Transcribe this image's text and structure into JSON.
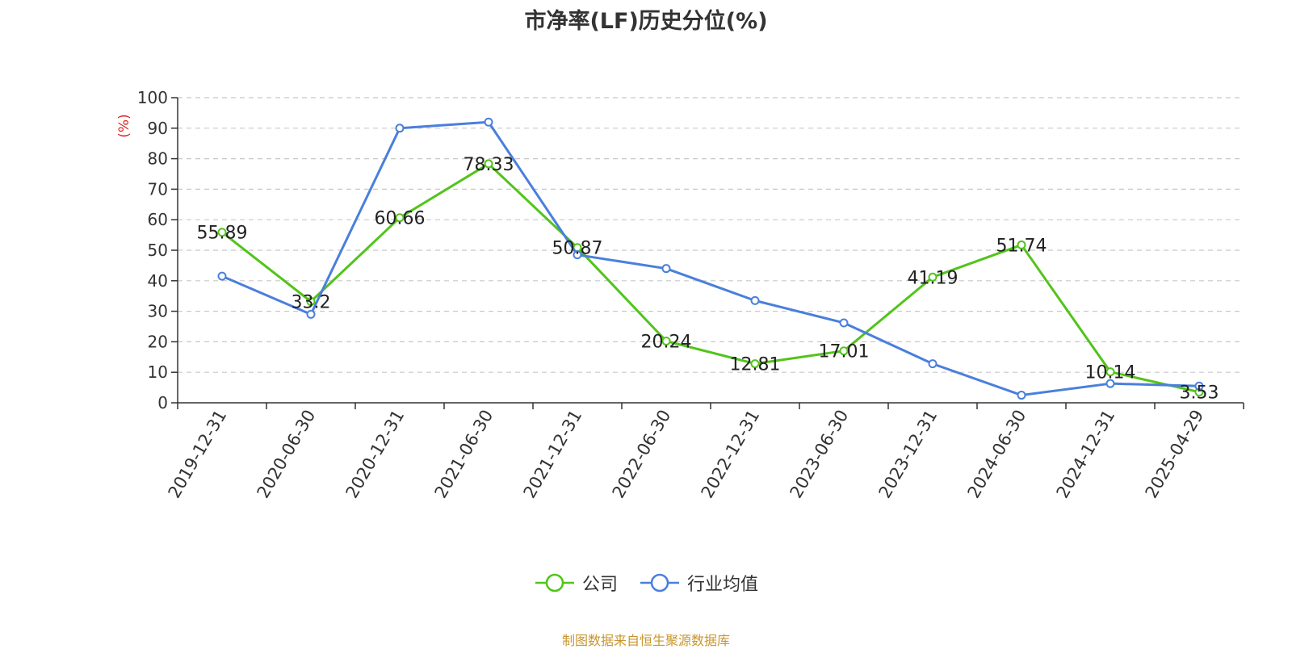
{
  "chart_data": {
    "type": "line",
    "title": "市净率(LF)历史分位(%)",
    "ylabel": "(%)",
    "xlabel": "",
    "ylim": [
      0,
      100
    ],
    "yticks": [
      "0",
      "10",
      "20",
      "30",
      "40",
      "50",
      "60",
      "70",
      "80",
      "90",
      "100"
    ],
    "categories": [
      "2019-12-31",
      "2020-06-30",
      "2020-12-31",
      "2021-06-30",
      "2021-12-31",
      "2022-06-30",
      "2022-12-31",
      "2023-06-30",
      "2023-12-31",
      "2024-06-30",
      "2024-12-31",
      "2025-04-29"
    ],
    "grid": true,
    "legend_position": "bottom-center",
    "series": [
      {
        "name": "公司",
        "color": "#52c41a",
        "values": [
          55.89,
          33.2,
          60.66,
          78.33,
          50.87,
          20.24,
          12.81,
          17.01,
          41.19,
          51.74,
          10.14,
          3.53
        ],
        "labels": [
          "55.89",
          "33.2",
          "60.66",
          "78.33",
          "50.87",
          "20.24",
          "12.81",
          "17.01",
          "41.19",
          "51.74",
          "10.14",
          "3.53"
        ]
      },
      {
        "name": "行业均值",
        "color": "#4a7fdc",
        "values": [
          41.5,
          29,
          90,
          92,
          48.5,
          44,
          33.5,
          26.2,
          12.8,
          2.5,
          6.3,
          5.5
        ]
      }
    ]
  },
  "footer": {
    "source": "制图数据来自恒生聚源数据库"
  }
}
